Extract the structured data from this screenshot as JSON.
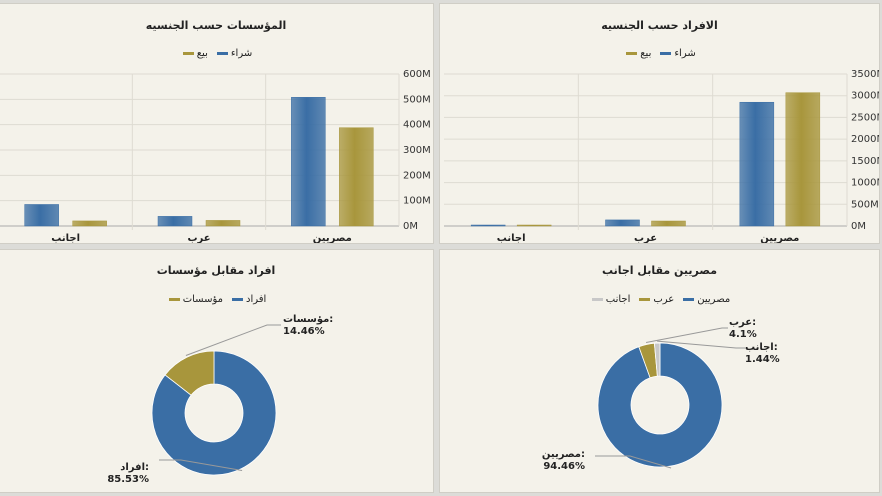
{
  "chart_data": [
    {
      "type": "bar",
      "title": "المؤسسات حسب الجنسيه",
      "categories": [
        "اجانب",
        "عرب",
        "مصريين"
      ],
      "series": [
        {
          "name": "شراء",
          "color": "#3a6ea5",
          "values": [
            85,
            38,
            508
          ]
        },
        {
          "name": "بيع",
          "color": "#a8963c",
          "values": [
            20,
            22,
            388
          ]
        }
      ],
      "yticks": [
        "0M",
        "100M",
        "200M",
        "300M",
        "400M",
        "500M",
        "600M"
      ],
      "ylim": [
        0,
        600
      ],
      "grid": true,
      "legend": "top"
    },
    {
      "type": "bar",
      "title": "الافراد حسب الجنسيه",
      "categories": [
        "اجانب",
        "عرب",
        "مصريين"
      ],
      "series": [
        {
          "name": "شراء",
          "color": "#3a6ea5",
          "values": [
            15,
            140,
            2850
          ]
        },
        {
          "name": "بيع",
          "color": "#a8963c",
          "values": [
            10,
            115,
            3070
          ]
        }
      ],
      "yticks": [
        "0M",
        "500M",
        "1000M",
        "1500M",
        "2000M",
        "2500M",
        "3000M",
        "3500M"
      ],
      "ylim": [
        0,
        3500
      ],
      "grid": true,
      "legend": "top"
    },
    {
      "type": "pie",
      "title": "افراد مقابل مؤسسات",
      "slices": [
        {
          "name": "افراد",
          "value": 85.53,
          "color": "#3a6ea5",
          "label": "افراد:",
          "pct": "85.53%"
        },
        {
          "name": "مؤسسات",
          "value": 14.46,
          "color": "#a8963c",
          "label": "مؤسسات:",
          "pct": "14.46%"
        }
      ],
      "legend": "top"
    },
    {
      "type": "pie",
      "title": "مصريين مقابل اجانب",
      "slices": [
        {
          "name": "مصريين",
          "value": 94.46,
          "color": "#3a6ea5",
          "label": "مصريين:",
          "pct": "94.46%"
        },
        {
          "name": "عرب",
          "value": 4.1,
          "color": "#a8963c",
          "label": "عرب:",
          "pct": "4.1%"
        },
        {
          "name": "اجانب",
          "value": 1.44,
          "color": "#c8c8c8",
          "label": "اجانب:",
          "pct": "1.44%"
        }
      ],
      "legend": "top"
    }
  ]
}
